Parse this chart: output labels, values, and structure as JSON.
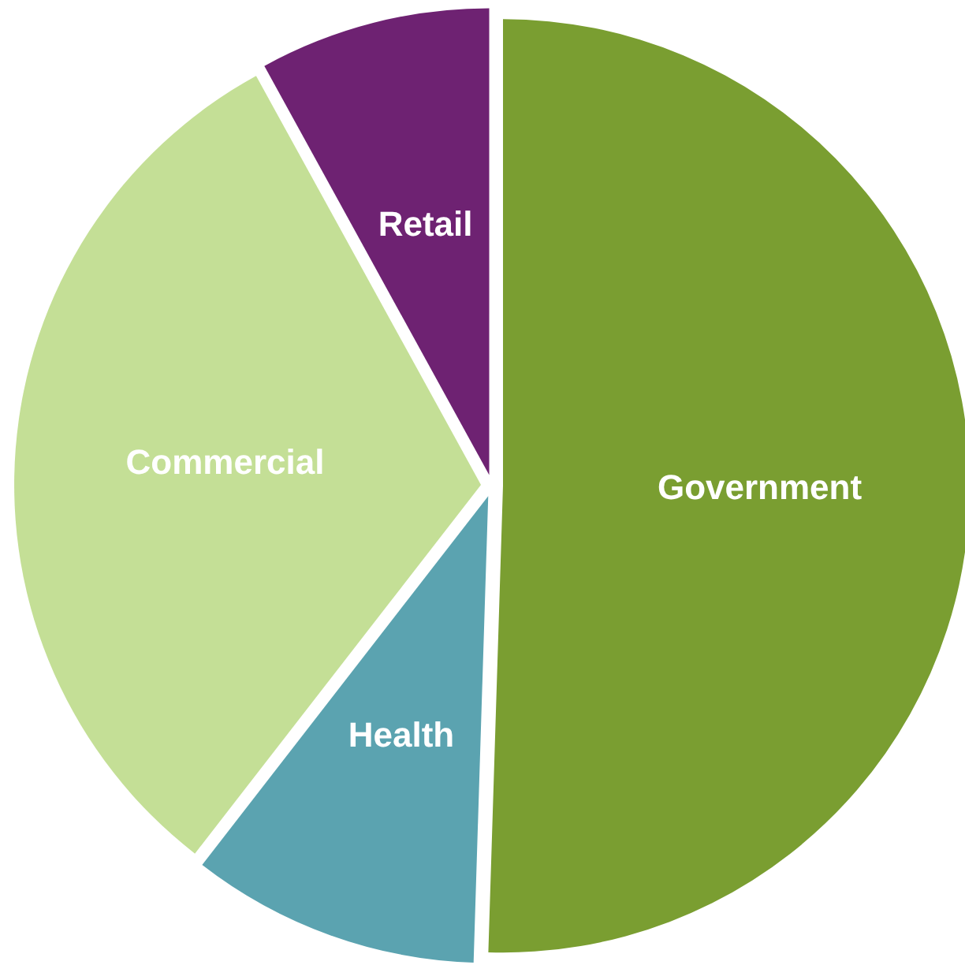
{
  "chart_data": {
    "type": "pie",
    "categories": [
      "Government",
      "Health",
      "Commercial",
      "Retail"
    ],
    "values": [
      50.5,
      10,
      31.5,
      8
    ],
    "colors": [
      "#7a9e31",
      "#5ba3b0",
      "#c4df96",
      "#6e2272"
    ]
  }
}
